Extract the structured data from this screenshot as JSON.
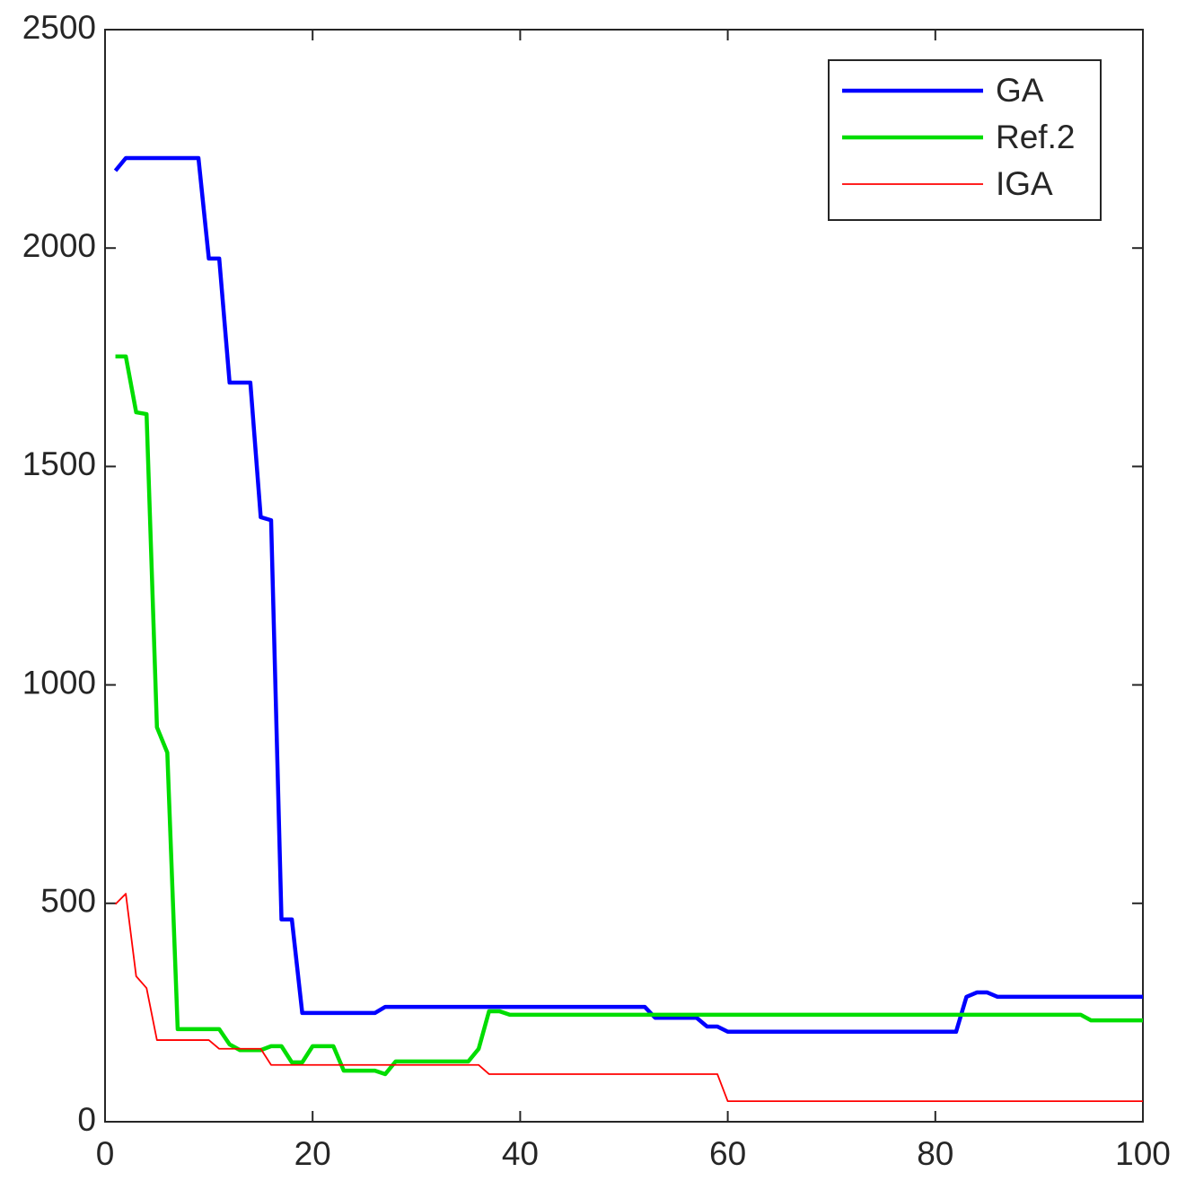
{
  "chart_data": {
    "type": "line",
    "x": [
      1,
      2,
      3,
      4,
      5,
      6,
      7,
      8,
      9,
      10,
      11,
      12,
      13,
      14,
      15,
      16,
      17,
      18,
      19,
      20,
      21,
      22,
      23,
      24,
      25,
      26,
      27,
      28,
      29,
      30,
      31,
      32,
      33,
      34,
      35,
      36,
      37,
      38,
      39,
      40,
      41,
      42,
      43,
      44,
      45,
      46,
      47,
      48,
      49,
      50,
      51,
      52,
      53,
      54,
      55,
      56,
      57,
      58,
      59,
      60,
      61,
      62,
      63,
      64,
      65,
      66,
      67,
      68,
      69,
      70,
      71,
      72,
      73,
      74,
      75,
      76,
      77,
      78,
      79,
      80,
      81,
      82,
      83,
      84,
      85,
      86,
      87,
      88,
      89,
      90,
      91,
      92,
      93,
      94,
      95,
      96,
      97,
      98,
      99,
      100
    ],
    "series": [
      {
        "name": "GA",
        "color": "#0000ff",
        "values": [
          2177,
          2206,
          2206,
          2206,
          2206,
          2206,
          2206,
          2206,
          2206,
          1976,
          1976,
          1692,
          1692,
          1692,
          1384,
          1377,
          463,
          463,
          249,
          249,
          249,
          249,
          249,
          249,
          249,
          249,
          263,
          263,
          263,
          263,
          263,
          263,
          263,
          263,
          263,
          263,
          263,
          263,
          263,
          263,
          263,
          263,
          263,
          263,
          263,
          263,
          263,
          263,
          263,
          263,
          263,
          263,
          238,
          238,
          238,
          238,
          238,
          218,
          218,
          206,
          206,
          206,
          206,
          206,
          206,
          206,
          206,
          206,
          206,
          206,
          206,
          206,
          206,
          206,
          206,
          206,
          206,
          206,
          206,
          206,
          206,
          206,
          286,
          296,
          296,
          286,
          286,
          286,
          286,
          286,
          286,
          286,
          286,
          286,
          286,
          286,
          286,
          286,
          286,
          286
        ]
      },
      {
        "name": "Ref.2",
        "color": "#00dd00",
        "values": [
          1752,
          1752,
          1624,
          1620,
          903,
          845,
          212,
          212,
          212,
          212,
          212,
          177,
          164,
          164,
          164,
          173,
          173,
          136,
          136,
          173,
          173,
          173,
          117,
          117,
          117,
          117,
          109,
          138,
          138,
          138,
          138,
          138,
          138,
          138,
          138,
          167,
          253,
          253,
          245,
          245,
          245,
          245,
          245,
          245,
          245,
          245,
          245,
          245,
          245,
          245,
          245,
          245,
          245,
          245,
          245,
          245,
          245,
          245,
          245,
          245,
          245,
          245,
          245,
          245,
          245,
          245,
          245,
          245,
          245,
          245,
          245,
          245,
          245,
          245,
          245,
          245,
          245,
          245,
          245,
          245,
          245,
          245,
          245,
          245,
          245,
          245,
          245,
          245,
          245,
          245,
          245,
          245,
          245,
          245,
          232,
          232,
          232,
          232,
          232,
          232
        ]
      },
      {
        "name": "IGA",
        "color": "#ff0000",
        "values": [
          498,
          522,
          333,
          306,
          187,
          187,
          187,
          187,
          187,
          187,
          167,
          167,
          167,
          167,
          167,
          130,
          130,
          130,
          130,
          130,
          130,
          130,
          130,
          130,
          130,
          130,
          130,
          130,
          130,
          130,
          130,
          130,
          130,
          130,
          130,
          130,
          109,
          109,
          109,
          109,
          109,
          109,
          109,
          109,
          109,
          109,
          109,
          109,
          109,
          109,
          109,
          109,
          109,
          109,
          109,
          109,
          109,
          109,
          109,
          47,
          47,
          47,
          47,
          47,
          47,
          47,
          47,
          47,
          47,
          47,
          47,
          47,
          47,
          47,
          47,
          47,
          47,
          47,
          47,
          47,
          47,
          47,
          47,
          47,
          47,
          47,
          47,
          47,
          47,
          47,
          47,
          47,
          47,
          47,
          47,
          47,
          47,
          47,
          47,
          47
        ]
      }
    ],
    "xlim": [
      0,
      100
    ],
    "xticks": [
      0,
      20,
      40,
      60,
      80,
      100
    ],
    "ylim": [
      0,
      2500
    ],
    "yticks": [
      0,
      500,
      1000,
      1500,
      2000,
      2500
    ],
    "legend": "upper right"
  }
}
